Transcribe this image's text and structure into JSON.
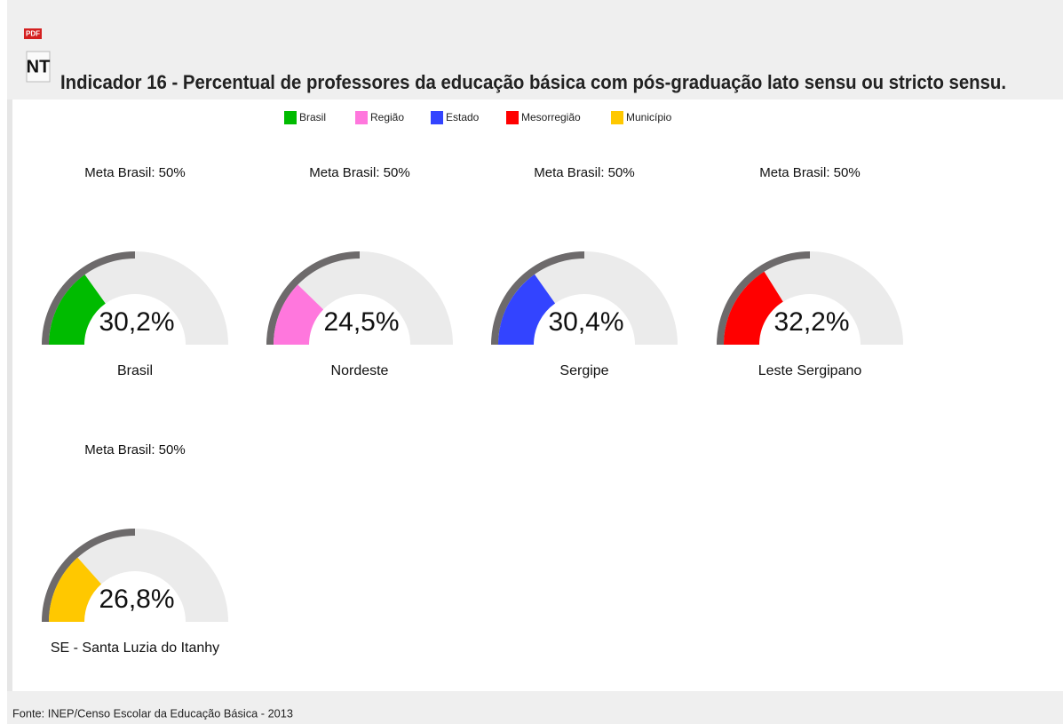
{
  "header": {
    "icon_top": "PDF",
    "icon_label": "NT",
    "title": "Indicador 16 - Percentual de professores da educação básica com pós-graduação lato sensu ou stricto sensu."
  },
  "legend": [
    {
      "name": "Brasil",
      "color": "#00bb00"
    },
    {
      "name": "Região",
      "color": "#ff77dd"
    },
    {
      "name": "Estado",
      "color": "#3344ff"
    },
    {
      "name": "Mesorregião",
      "color": "#ff0000"
    },
    {
      "name": "Município",
      "color": "#ffc800"
    }
  ],
  "chart_data": [
    {
      "type": "gauge",
      "name": "Brasil",
      "value": 30.2,
      "value_label": "30,2%",
      "target": 50,
      "target_label": "Meta Brasil: 50%",
      "color": "#00bb00",
      "ylim": [
        0,
        100
      ]
    },
    {
      "type": "gauge",
      "name": "Nordeste",
      "value": 24.5,
      "value_label": "24,5%",
      "target": 50,
      "target_label": "Meta Brasil: 50%",
      "color": "#ff77dd",
      "ylim": [
        0,
        100
      ]
    },
    {
      "type": "gauge",
      "name": "Sergipe",
      "value": 30.4,
      "value_label": "30,4%",
      "target": 50,
      "target_label": "Meta Brasil: 50%",
      "color": "#3344ff",
      "ylim": [
        0,
        100
      ]
    },
    {
      "type": "gauge",
      "name": "Leste Sergipano",
      "value": 32.2,
      "value_label": "32,2%",
      "target": 50,
      "target_label": "Meta Brasil: 50%",
      "color": "#ff0000",
      "ylim": [
        0,
        100
      ]
    },
    {
      "type": "gauge",
      "name": "SE - Santa Luzia do Itanhy",
      "value": 26.8,
      "value_label": "26,8%",
      "target": 50,
      "target_label": "Meta Brasil: 50%",
      "color": "#ffc800",
      "ylim": [
        0,
        100
      ]
    }
  ],
  "footer": "Fonte: INEP/Censo Escolar da Educação Básica - 2013"
}
